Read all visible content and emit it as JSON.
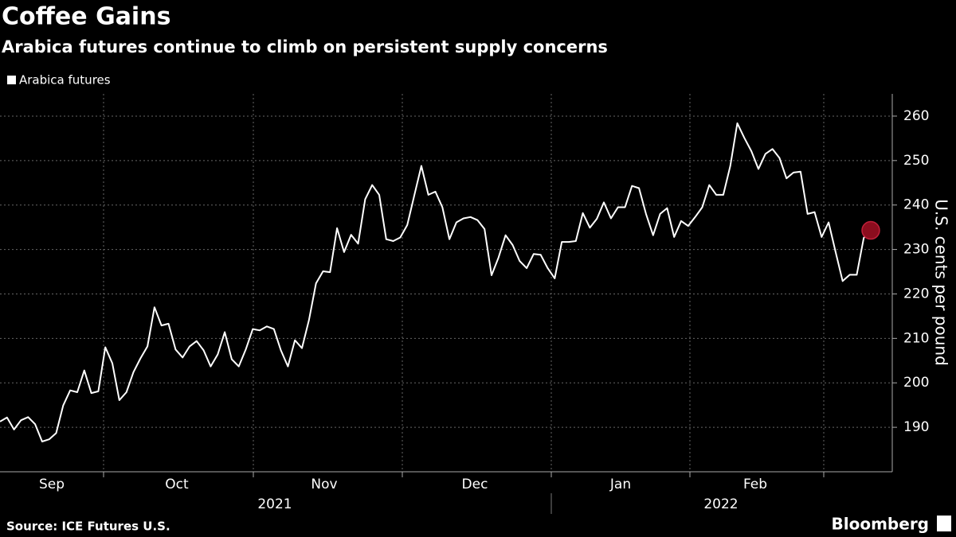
{
  "chart_data": {
    "type": "line",
    "title": "Coffee Gains",
    "subtitle": "Arabica futures continue to climb on persistent supply concerns",
    "y_label": "U.S. cents per pound",
    "source": "Source: ICE Futures U.S.",
    "brand": "Bloomberg",
    "months": [
      "Sep",
      "Oct",
      "Nov",
      "Dec",
      "Jan",
      "Feb"
    ],
    "years": [
      "2021",
      "2022"
    ],
    "ylim": [
      180,
      265
    ],
    "yticks": [
      190,
      200,
      210,
      220,
      230,
      240,
      250,
      260
    ],
    "grid": true,
    "series": [
      {
        "name": "Arabica futures",
        "color": "#ffffff",
        "values": [
          191.3,
          192.2,
          189.5,
          191.6,
          192.3,
          190.7,
          186.8,
          187.3,
          188.7,
          194.9,
          198.3,
          197.9,
          202.8,
          197.7,
          198.1,
          208,
          204.4,
          196.1,
          197.9,
          202.4,
          205.5,
          208.2,
          217,
          212.9,
          213.3,
          207.5,
          205.7,
          208.2,
          209.4,
          207.3,
          203.7,
          206.4,
          211.4,
          205.3,
          203.7,
          207.5,
          212.1,
          211.8,
          212.7,
          212.1,
          207.3,
          203.7,
          209.6,
          207.8,
          214.1,
          222.4,
          225.1,
          224.9,
          234.8,
          229.4,
          233.3,
          231.3,
          241.3,
          244.5,
          242.3,
          232.3,
          231.9,
          232.7,
          235.5,
          242.2,
          248.8,
          242.3,
          243,
          239.5,
          232.3,
          236.1,
          237,
          237.3,
          236.6,
          234.6,
          224.2,
          228.2,
          233.2,
          231,
          227.4,
          225.8,
          229,
          228.8,
          225.8,
          223.5,
          231.7,
          231.7,
          231.9,
          238.2,
          234.9,
          236.9,
          240.6,
          237,
          239.5,
          239.5,
          244.3,
          243.8,
          238,
          233.2,
          238,
          239.3,
          232.8,
          236.4,
          235.3,
          237.3,
          239.5,
          244.5,
          242.3,
          242.3,
          248.8,
          258.4,
          255.1,
          252.1,
          248.1,
          251.5,
          252.6,
          250.6,
          246,
          247.3,
          247.5,
          238,
          238.4,
          232.8,
          236.1,
          229.4,
          222.9,
          224.3,
          224.3,
          232.6,
          234.3
        ]
      }
    ]
  }
}
